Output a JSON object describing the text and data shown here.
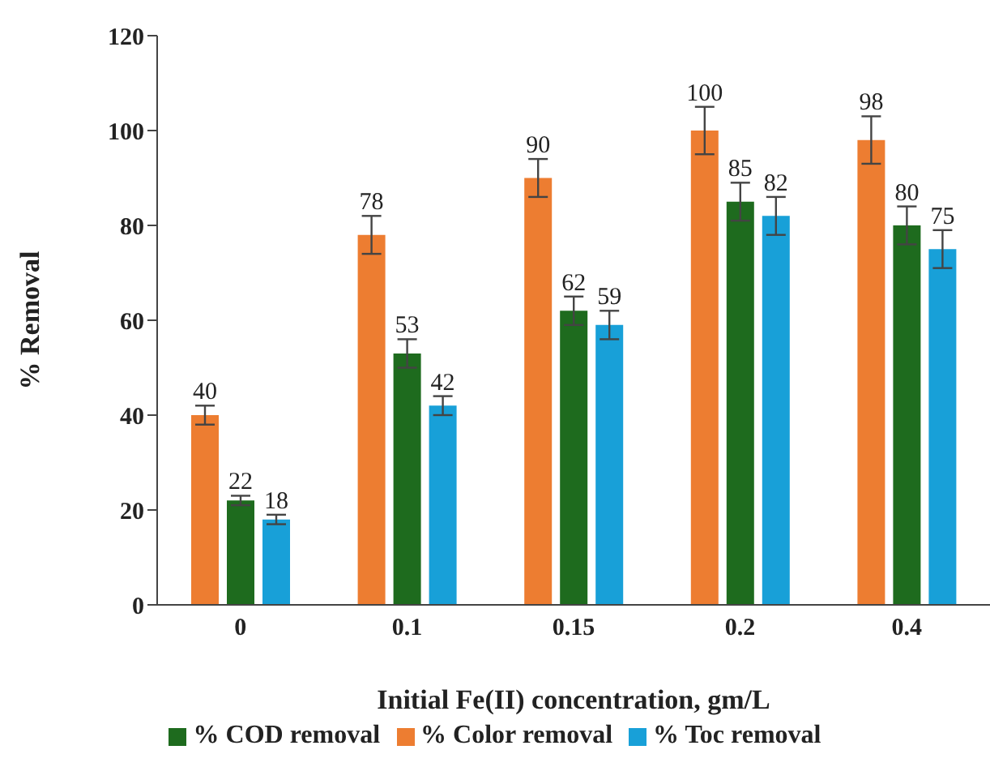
{
  "chart_data": {
    "type": "bar",
    "xlabel": "Initial Fe(II) concentration, gm/L",
    "ylabel": "% Removal",
    "categories": [
      "0",
      "0.1",
      "0.15",
      "0.2",
      "0.4"
    ],
    "series": [
      {
        "name": "% Color removal",
        "color": "#ed7d31",
        "values": [
          40,
          78,
          90,
          100,
          98
        ],
        "errors": [
          2,
          4,
          4,
          5,
          5
        ]
      },
      {
        "name": "% COD removal",
        "color": "#1e6b1e",
        "values": [
          22,
          53,
          62,
          85,
          80
        ],
        "errors": [
          1,
          3,
          3,
          4,
          4
        ]
      },
      {
        "name": "% Toc removal",
        "color": "#18a0d8",
        "values": [
          18,
          42,
          59,
          82,
          75
        ],
        "errors": [
          1,
          2,
          3,
          4,
          4
        ]
      }
    ],
    "ylim": [
      0,
      120
    ],
    "yticks": [
      0,
      20,
      40,
      60,
      80,
      100,
      120
    ],
    "grid": false,
    "legend": "bottom",
    "data_labels": true
  }
}
